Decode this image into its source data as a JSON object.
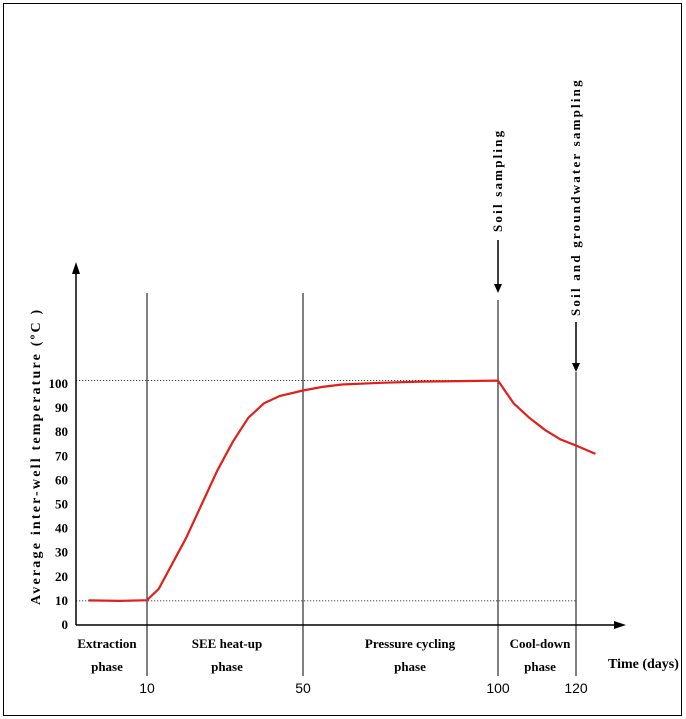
{
  "chart_data": {
    "type": "line",
    "xlabel": "Time (days)",
    "ylabel": "Average inter-well temperature (ºC )",
    "ylim": [
      0,
      110
    ],
    "yticks": [
      "0",
      "10",
      "20",
      "30",
      "40",
      "50",
      "60",
      "70",
      "80",
      "90",
      "100"
    ],
    "xticks": [
      {
        "value": 10,
        "label": "10"
      },
      {
        "value": 50,
        "label": "50"
      },
      {
        "value": 100,
        "label": "100"
      },
      {
        "value": 120,
        "label": "120"
      }
    ],
    "series": [
      {
        "color": "#e0201b",
        "points": [
          [
            -5,
            10.2
          ],
          [
            3,
            10.0
          ],
          [
            10,
            10.3
          ],
          [
            13,
            15
          ],
          [
            16,
            24
          ],
          [
            20,
            36
          ],
          [
            24,
            50
          ],
          [
            28,
            64
          ],
          [
            32,
            76
          ],
          [
            36,
            86
          ],
          [
            40,
            92
          ],
          [
            44,
            95
          ],
          [
            50,
            97.3
          ],
          [
            55,
            98.8
          ],
          [
            60,
            99.8
          ],
          [
            70,
            100.5
          ],
          [
            80,
            101
          ],
          [
            90,
            101.2
          ],
          [
            100,
            101.4
          ],
          [
            104,
            92
          ],
          [
            108,
            86
          ],
          [
            112,
            81
          ],
          [
            116,
            77
          ],
          [
            120,
            74.5
          ],
          [
            125,
            71
          ]
        ]
      }
    ],
    "reference_lines": [
      {
        "axis": "y",
        "value": 101.5,
        "style": "dotted"
      },
      {
        "axis": "y",
        "value": 10,
        "style": "dotted"
      }
    ],
    "phase_boundaries": [
      10,
      50,
      100,
      120
    ],
    "phases": [
      {
        "line1": "Extraction",
        "line2": "phase",
        "center": 0
      },
      {
        "line1": "SEE heat-up",
        "line2": "phase",
        "center": 30
      },
      {
        "line1": "Pressure cycling",
        "line2": "phase",
        "center": 75
      },
      {
        "line1": "Cool-down",
        "line2": "phase",
        "center": 110
      }
    ],
    "annotations": [
      {
        "text": "Soil sampling",
        "x": 100
      },
      {
        "text": "Soil and groundwater sampling",
        "x": 120
      }
    ],
    "series_color": "#e0201b"
  }
}
